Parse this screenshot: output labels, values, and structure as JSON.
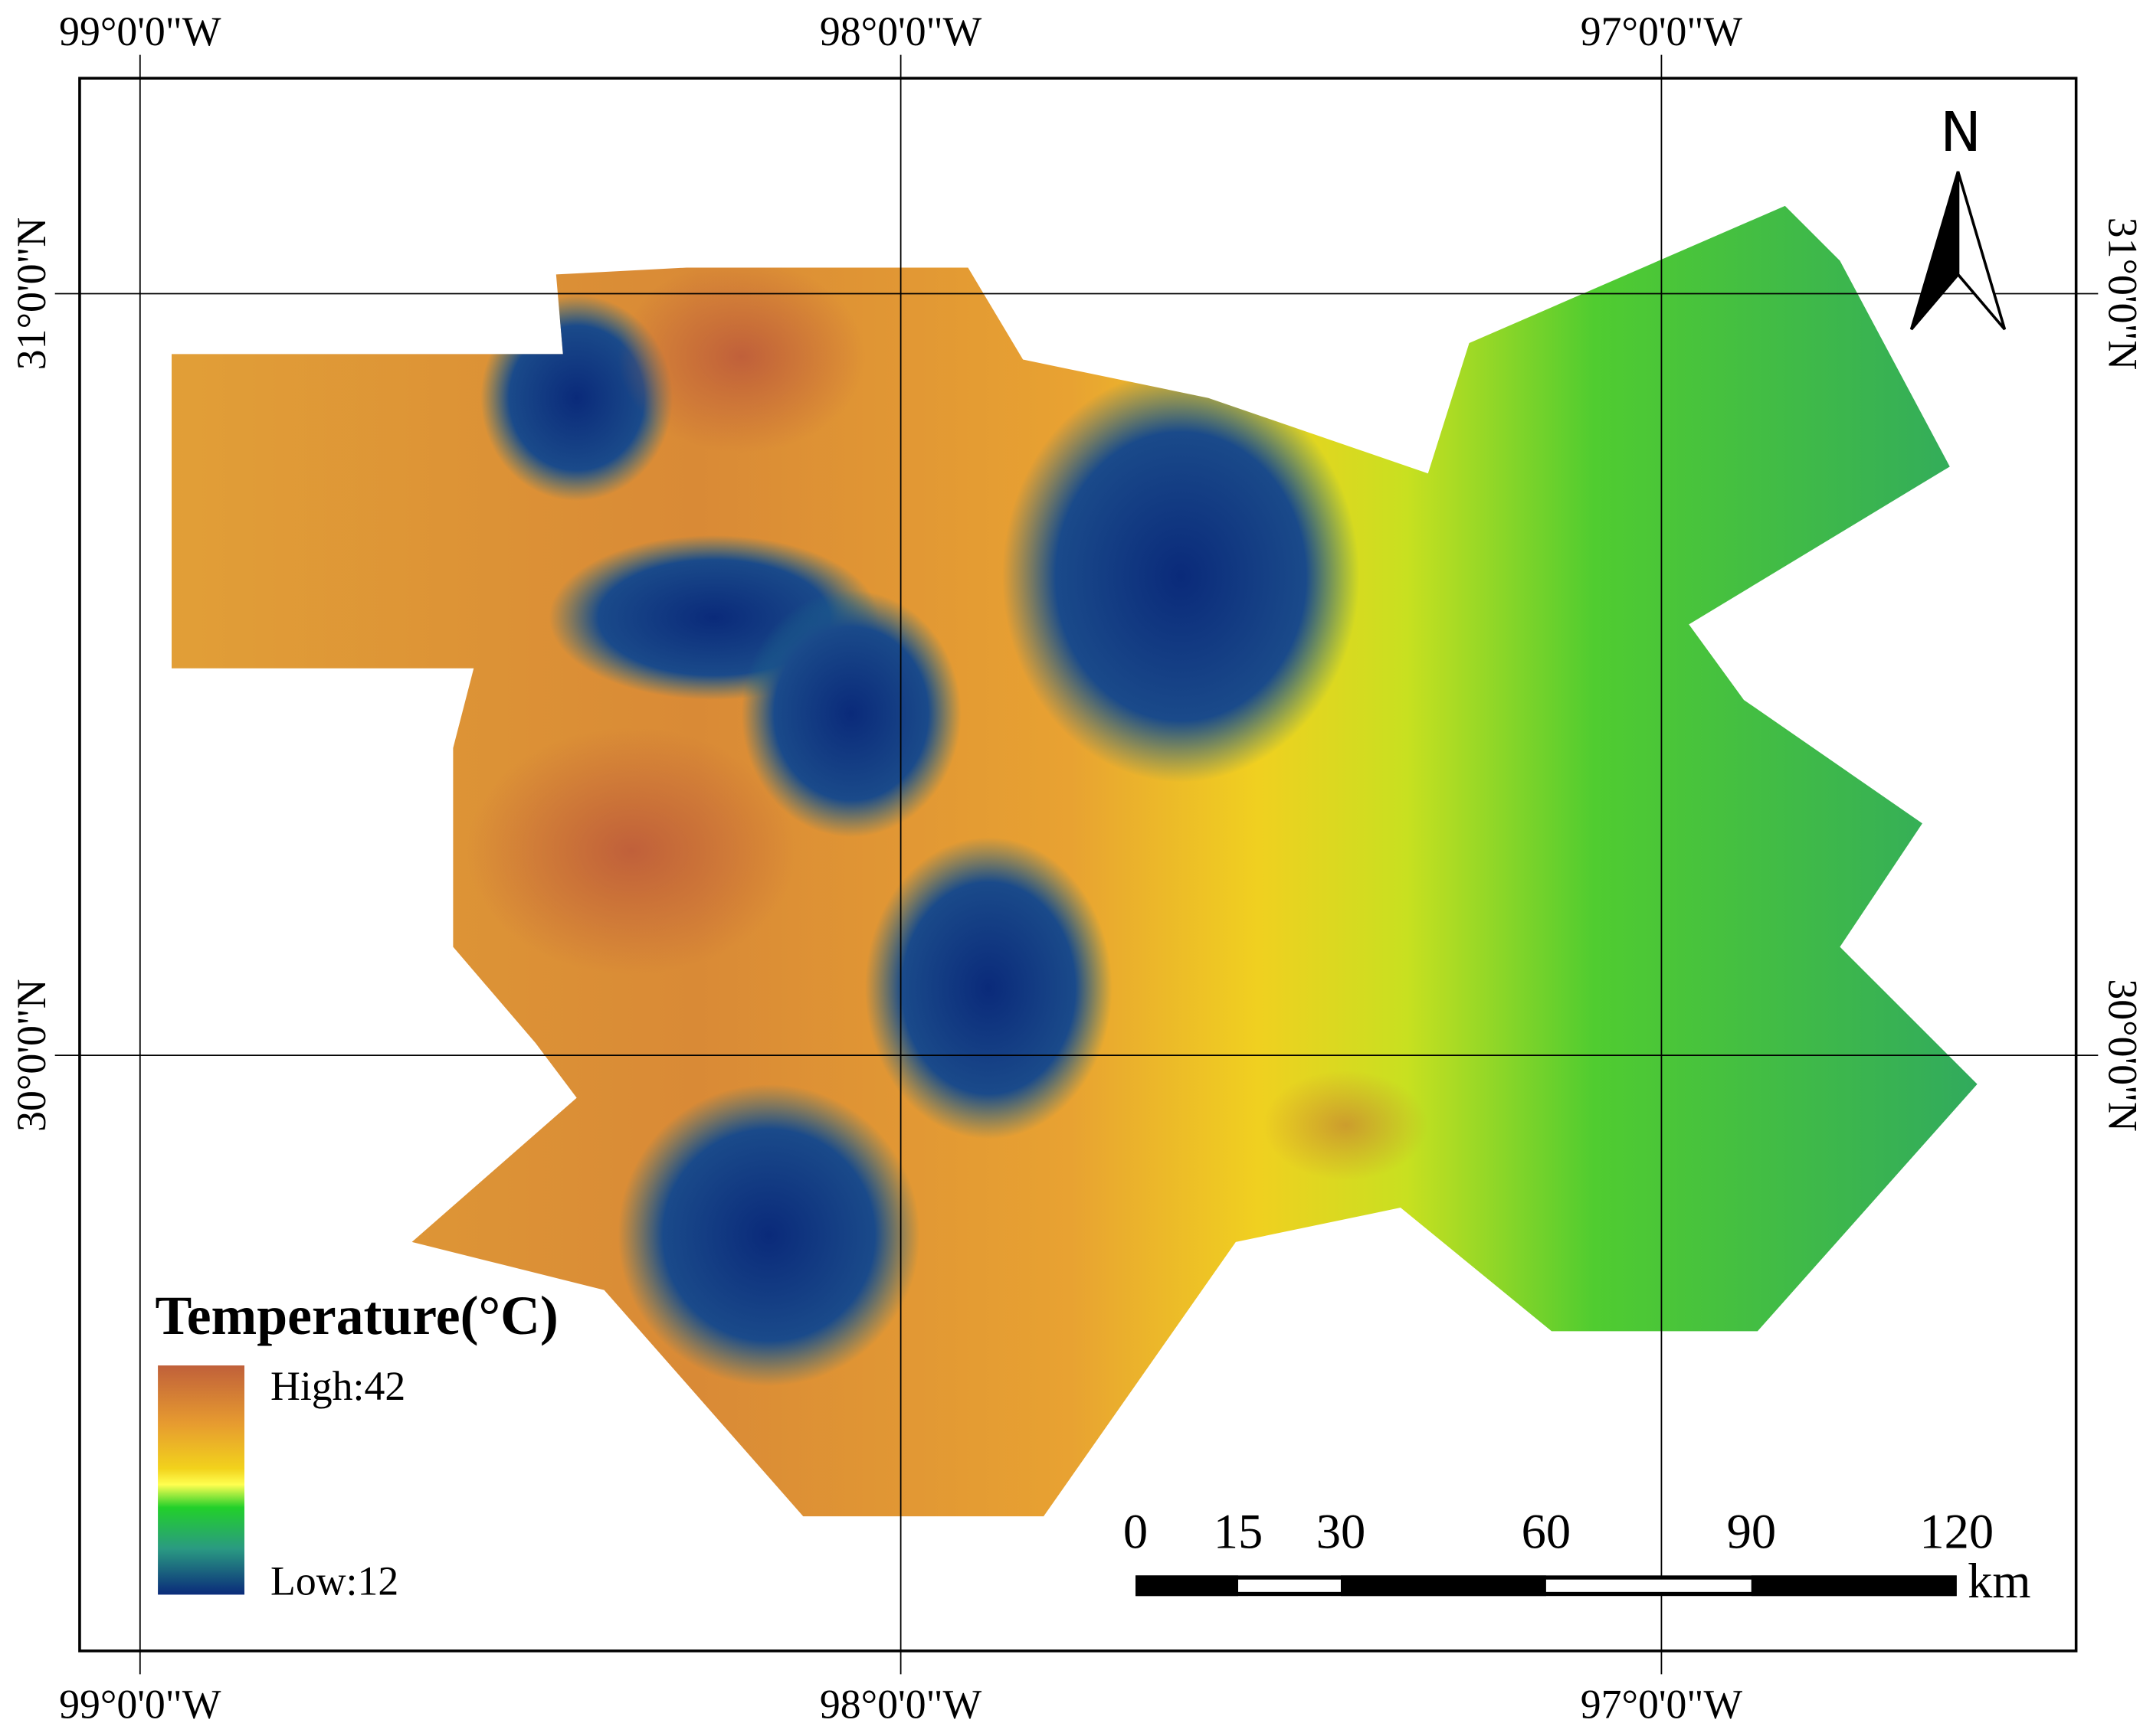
{
  "graticule": {
    "longitudes": [
      "99°0'0\"W",
      "98°0'0\"W",
      "97°0'0\"W"
    ],
    "latitudes": [
      "31°0'0\"N",
      "30°0'0\"N"
    ]
  },
  "legend": {
    "title": "Temperature(°C)",
    "high": "High:42",
    "low": "Low:12"
  },
  "north_arrow": "N",
  "scale_bar": {
    "ticks": [
      0,
      15,
      30,
      60,
      90,
      120
    ],
    "unit": "km"
  }
}
